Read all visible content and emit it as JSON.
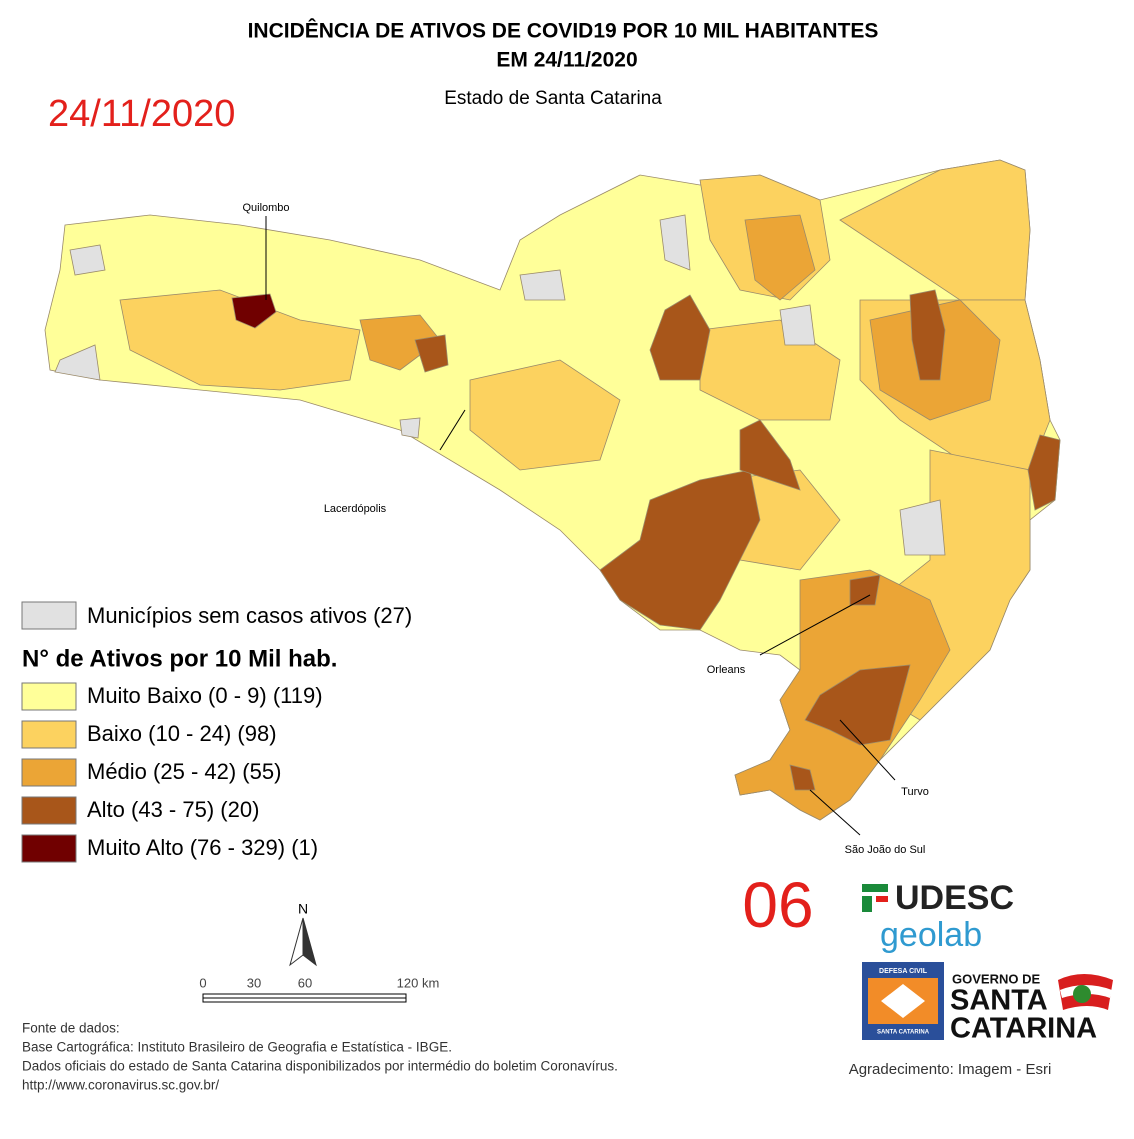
{
  "header": {
    "title_line1": "INCIDÊNCIA DE ATIVOS DE COVID19 POR 10 MIL HABITANTES",
    "title_line2": "EM 24/11/2020",
    "subtitle": "Estado de Santa Catarina",
    "date_stamp": "24/11/2020"
  },
  "map": {
    "labels": [
      "Quilombo",
      "Lacerdópolis",
      "Orleans",
      "Turvo",
      "São João do Sul"
    ]
  },
  "legend": {
    "no_cases": {
      "label": "Municípios sem casos ativos (27)",
      "color": "#e1e1e1"
    },
    "title": "N° de Ativos por 10 Mil hab.",
    "classes": [
      {
        "label": "Muito Baixo (0 - 9) (119)",
        "color": "#ffff99"
      },
      {
        "label": "Baixo (10 - 24) (98)",
        "color": "#fcd25f"
      },
      {
        "label": "Médio (25 - 42) (55)",
        "color": "#eba536"
      },
      {
        "label": "Alto (43 - 75) (20)",
        "color": "#a8561a"
      },
      {
        "label": "Muito Alto (76 - 329) (1)",
        "color": "#700000"
      }
    ]
  },
  "north": "N",
  "scale": {
    "labels": [
      "0",
      "30",
      "60",
      "120 km"
    ]
  },
  "sources": [
    "Fonte de dados:",
    "Base Cartográfica: Instituto Brasileiro de Geografia e Estatística - IBGE.",
    "Dados oficiais do estado de Santa Catarina disponibilizados por intermédio do boletim Coronavírus.",
    "http://www.coronavirus.sc.gov.br/"
  ],
  "page_number": "06",
  "logos": {
    "udesc": "UDESC",
    "geolab": "geolab",
    "defesa_top": "DEFESA CIVIL",
    "defesa_bottom": "SANTA CATARINA",
    "governo": "GOVERNO DE",
    "state_line1": "SANTA",
    "state_line2": "CATARINA"
  },
  "credit": "Agradecimento: Imagem - Esri"
}
